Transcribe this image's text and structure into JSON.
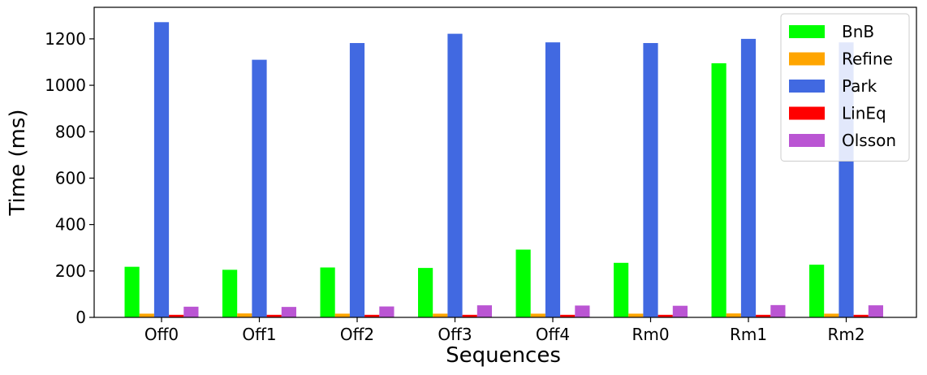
{
  "chart_data": {
    "type": "bar",
    "title": "",
    "xlabel": "Sequences",
    "ylabel": "Time (ms)",
    "ylim": [
      0,
      1336
    ],
    "yticks": [
      0,
      200,
      400,
      600,
      800,
      1000,
      1200
    ],
    "categories": [
      "Off0",
      "Off1",
      "Off2",
      "Off3",
      "Off4",
      "Rm0",
      "Rm1",
      "Rm2"
    ],
    "legend_position": "top-right",
    "grid": false,
    "series": [
      {
        "name": "BnB",
        "color": "#00ff00",
        "values": [
          218,
          205,
          215,
          213,
          292,
          235,
          1095,
          227
        ]
      },
      {
        "name": "Refine",
        "color": "#ffa500",
        "values": [
          16,
          17,
          16,
          16,
          16,
          16,
          17,
          16
        ]
      },
      {
        "name": "Park",
        "color": "#4169e1",
        "values": [
          1272,
          1110,
          1182,
          1222,
          1185,
          1182,
          1200,
          1185
        ]
      },
      {
        "name": "LinEq",
        "color": "#ff0000",
        "values": [
          11,
          11,
          11,
          11,
          11,
          11,
          11,
          11
        ]
      },
      {
        "name": "Olsson",
        "color": "#ba55d3",
        "values": [
          46,
          45,
          47,
          52,
          51,
          50,
          53,
          52
        ]
      }
    ]
  }
}
